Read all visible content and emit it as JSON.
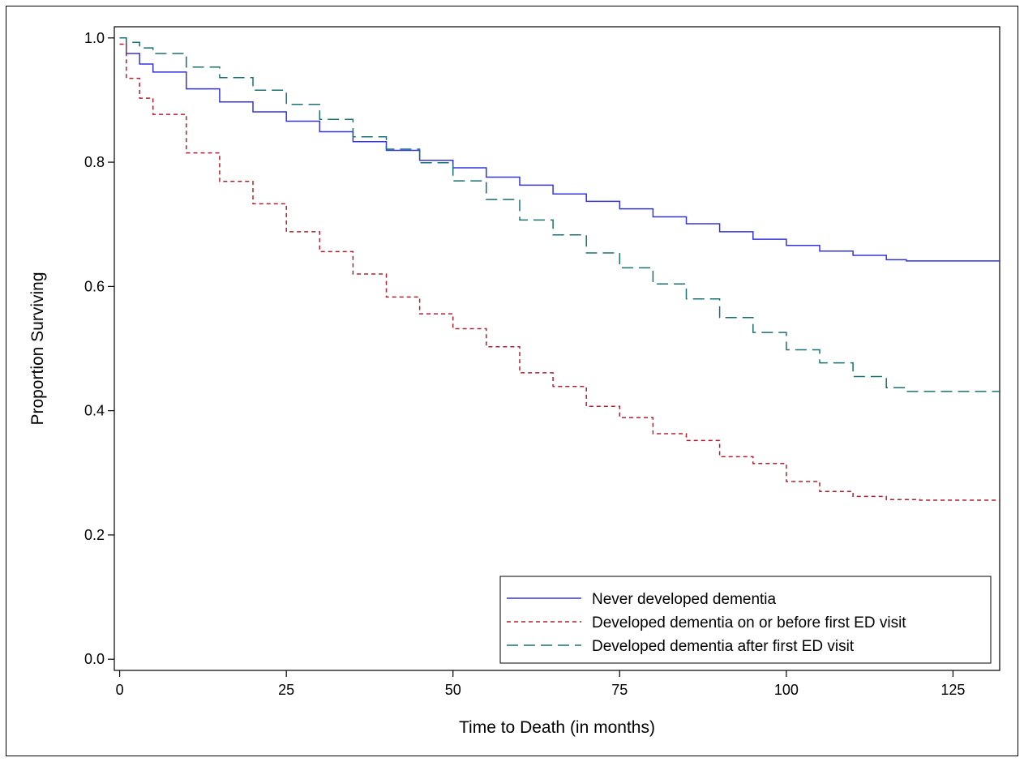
{
  "chart_data": {
    "type": "line",
    "title": "",
    "xlabel": "Time to Death (in months)",
    "ylabel": "Proportion Surviving",
    "xlim": [
      0,
      132
    ],
    "ylim": [
      0,
      1
    ],
    "x_ticks": [
      0,
      25,
      50,
      75,
      100,
      125
    ],
    "y_ticks": [
      0.0,
      0.2,
      0.4,
      0.6,
      0.8,
      1.0
    ],
    "x_tick_labels": [
      "0",
      "25",
      "50",
      "75",
      "100",
      "125"
    ],
    "y_tick_labels": [
      "0.0",
      "0.2",
      "0.4",
      "0.6",
      "0.8",
      "1.0"
    ],
    "grid": false,
    "legend_position": "bottom-right",
    "step": true,
    "series": [
      {
        "name": "Never developed dementia",
        "color": "#3333dd",
        "dash": "solid",
        "points": [
          [
            0,
            1.0
          ],
          [
            1,
            0.975
          ],
          [
            3,
            0.958
          ],
          [
            5,
            0.945
          ],
          [
            10,
            0.918
          ],
          [
            15,
            0.897
          ],
          [
            20,
            0.881
          ],
          [
            25,
            0.866
          ],
          [
            30,
            0.849
          ],
          [
            35,
            0.833
          ],
          [
            40,
            0.819
          ],
          [
            45,
            0.803
          ],
          [
            50,
            0.791
          ],
          [
            55,
            0.776
          ],
          [
            60,
            0.763
          ],
          [
            65,
            0.749
          ],
          [
            70,
            0.737
          ],
          [
            75,
            0.725
          ],
          [
            80,
            0.712
          ],
          [
            85,
            0.701
          ],
          [
            90,
            0.688
          ],
          [
            95,
            0.676
          ],
          [
            100,
            0.666
          ],
          [
            105,
            0.657
          ],
          [
            110,
            0.65
          ],
          [
            115,
            0.643
          ],
          [
            118,
            0.641
          ],
          [
            132,
            0.641
          ]
        ]
      },
      {
        "name": "Developed dementia on or before first ED visit",
        "color": "#b02030",
        "dash": "short-dash",
        "points": [
          [
            0,
            0.99
          ],
          [
            1,
            0.935
          ],
          [
            3,
            0.903
          ],
          [
            5,
            0.877
          ],
          [
            10,
            0.815
          ],
          [
            15,
            0.769
          ],
          [
            20,
            0.733
          ],
          [
            25,
            0.688
          ],
          [
            30,
            0.656
          ],
          [
            35,
            0.62
          ],
          [
            40,
            0.583
          ],
          [
            45,
            0.556
          ],
          [
            50,
            0.532
          ],
          [
            55,
            0.503
          ],
          [
            60,
            0.461
          ],
          [
            65,
            0.439
          ],
          [
            70,
            0.407
          ],
          [
            75,
            0.389
          ],
          [
            80,
            0.363
          ],
          [
            85,
            0.352
          ],
          [
            90,
            0.326
          ],
          [
            95,
            0.315
          ],
          [
            100,
            0.286
          ],
          [
            105,
            0.27
          ],
          [
            110,
            0.262
          ],
          [
            115,
            0.257
          ],
          [
            120,
            0.256
          ],
          [
            132,
            0.256
          ]
        ]
      },
      {
        "name": "Developed dementia after first ED visit",
        "color": "#1a7070",
        "dash": "long-dash",
        "points": [
          [
            0,
            1.0
          ],
          [
            1,
            0.993
          ],
          [
            3,
            0.984
          ],
          [
            5,
            0.975
          ],
          [
            10,
            0.953
          ],
          [
            15,
            0.936
          ],
          [
            20,
            0.916
          ],
          [
            25,
            0.893
          ],
          [
            30,
            0.869
          ],
          [
            35,
            0.841
          ],
          [
            40,
            0.821
          ],
          [
            45,
            0.799
          ],
          [
            50,
            0.77
          ],
          [
            55,
            0.74
          ],
          [
            60,
            0.707
          ],
          [
            65,
            0.683
          ],
          [
            70,
            0.654
          ],
          [
            75,
            0.63
          ],
          [
            80,
            0.604
          ],
          [
            85,
            0.58
          ],
          [
            90,
            0.55
          ],
          [
            95,
            0.526
          ],
          [
            100,
            0.498
          ],
          [
            105,
            0.477
          ],
          [
            110,
            0.455
          ],
          [
            115,
            0.437
          ],
          [
            118,
            0.431
          ],
          [
            132,
            0.431
          ]
        ]
      }
    ]
  }
}
